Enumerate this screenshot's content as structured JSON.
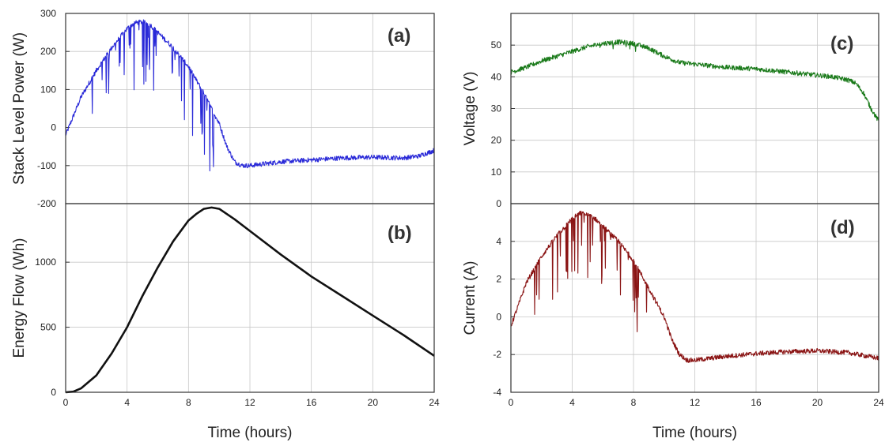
{
  "chart_data": [
    {
      "id": "a",
      "type": "line",
      "panel_label": "(a)",
      "ylabel": "Stack Level Power (W)",
      "xlabel": "",
      "xlim": [
        0,
        24
      ],
      "ylim": [
        -200,
        300
      ],
      "yticks": [
        -200,
        -100,
        0,
        100,
        200,
        300
      ],
      "xticks": [],
      "grid": true,
      "series": [
        {
          "color": "#2a2ad8",
          "noisy": true,
          "x": [
            0,
            1,
            2,
            3,
            4,
            4.5,
            5,
            5.5,
            6,
            7,
            8,
            9,
            10,
            10.5,
            11,
            11.5,
            12,
            13,
            14,
            16,
            18,
            20,
            22,
            23,
            24
          ],
          "y": [
            -20,
            80,
            150,
            210,
            260,
            275,
            278,
            270,
            250,
            210,
            160,
            90,
            10,
            -50,
            -90,
            -100,
            -100,
            -95,
            -90,
            -85,
            -80,
            -78,
            -80,
            -75,
            -60
          ]
        }
      ]
    },
    {
      "id": "b",
      "type": "line",
      "panel_label": "(b)",
      "ylabel": "Energy Flow (Wh)",
      "xlabel": "Time (hours)",
      "xlim": [
        0,
        24
      ],
      "ylim": [
        0,
        1450
      ],
      "yticks": [
        0,
        500,
        1000
      ],
      "xticks": [
        0,
        4,
        8,
        12,
        16,
        20,
        24
      ],
      "grid": true,
      "series": [
        {
          "color": "#111111",
          "noisy": false,
          "x": [
            0,
            0.5,
            1,
            2,
            3,
            4,
            5,
            6,
            7,
            8,
            8.5,
            9,
            9.5,
            10,
            11,
            12,
            14,
            16,
            18,
            20,
            22,
            24
          ],
          "y": [
            0,
            5,
            30,
            130,
            300,
            500,
            740,
            960,
            1160,
            1320,
            1370,
            1410,
            1420,
            1410,
            1330,
            1240,
            1060,
            890,
            740,
            590,
            440,
            280
          ]
        }
      ]
    },
    {
      "id": "c",
      "type": "line",
      "panel_label": "(c)",
      "ylabel": "Voltage (V)",
      "xlabel": "",
      "xlim": [
        0,
        24
      ],
      "ylim": [
        0,
        60
      ],
      "yticks": [
        0,
        10,
        20,
        30,
        40,
        50
      ],
      "xticks": [],
      "grid": true,
      "series": [
        {
          "color": "#1a7a1a",
          "noisy": true,
          "x": [
            0,
            1,
            2,
            3,
            4,
            5,
            6,
            7,
            8,
            9,
            10,
            11,
            12,
            14,
            16,
            18,
            20,
            21,
            22,
            22.5,
            23,
            23.5,
            24
          ],
          "y": [
            41.5,
            43,
            45,
            46.5,
            48,
            49.5,
            50.5,
            51,
            50.5,
            49,
            46.5,
            44.5,
            44,
            43,
            42.5,
            41.5,
            40.5,
            40,
            39,
            38,
            35,
            30,
            26
          ]
        }
      ]
    },
    {
      "id": "d",
      "type": "line",
      "panel_label": "(d)",
      "ylabel": "Current (A)",
      "xlabel": "Time (hours)",
      "xlim": [
        0,
        24
      ],
      "ylim": [
        -4,
        6
      ],
      "yticks": [
        -4,
        -2,
        0,
        2,
        4
      ],
      "xticks": [
        0,
        4,
        8,
        12,
        16,
        20,
        24
      ],
      "grid": true,
      "series": [
        {
          "color": "#8a1414",
          "noisy": true,
          "x": [
            0,
            1,
            2,
            3,
            4,
            4.5,
            5,
            5.5,
            6,
            7,
            8,
            9,
            10,
            10.5,
            11,
            11.5,
            12,
            14,
            16,
            18,
            20,
            22,
            24
          ],
          "y": [
            -0.5,
            1.8,
            3.2,
            4.3,
            5.2,
            5.5,
            5.4,
            5.2,
            4.8,
            4.0,
            3.0,
            1.5,
            0,
            -1.2,
            -2.0,
            -2.3,
            -2.3,
            -2.1,
            -1.95,
            -1.85,
            -1.8,
            -1.9,
            -2.2
          ]
        }
      ]
    }
  ]
}
